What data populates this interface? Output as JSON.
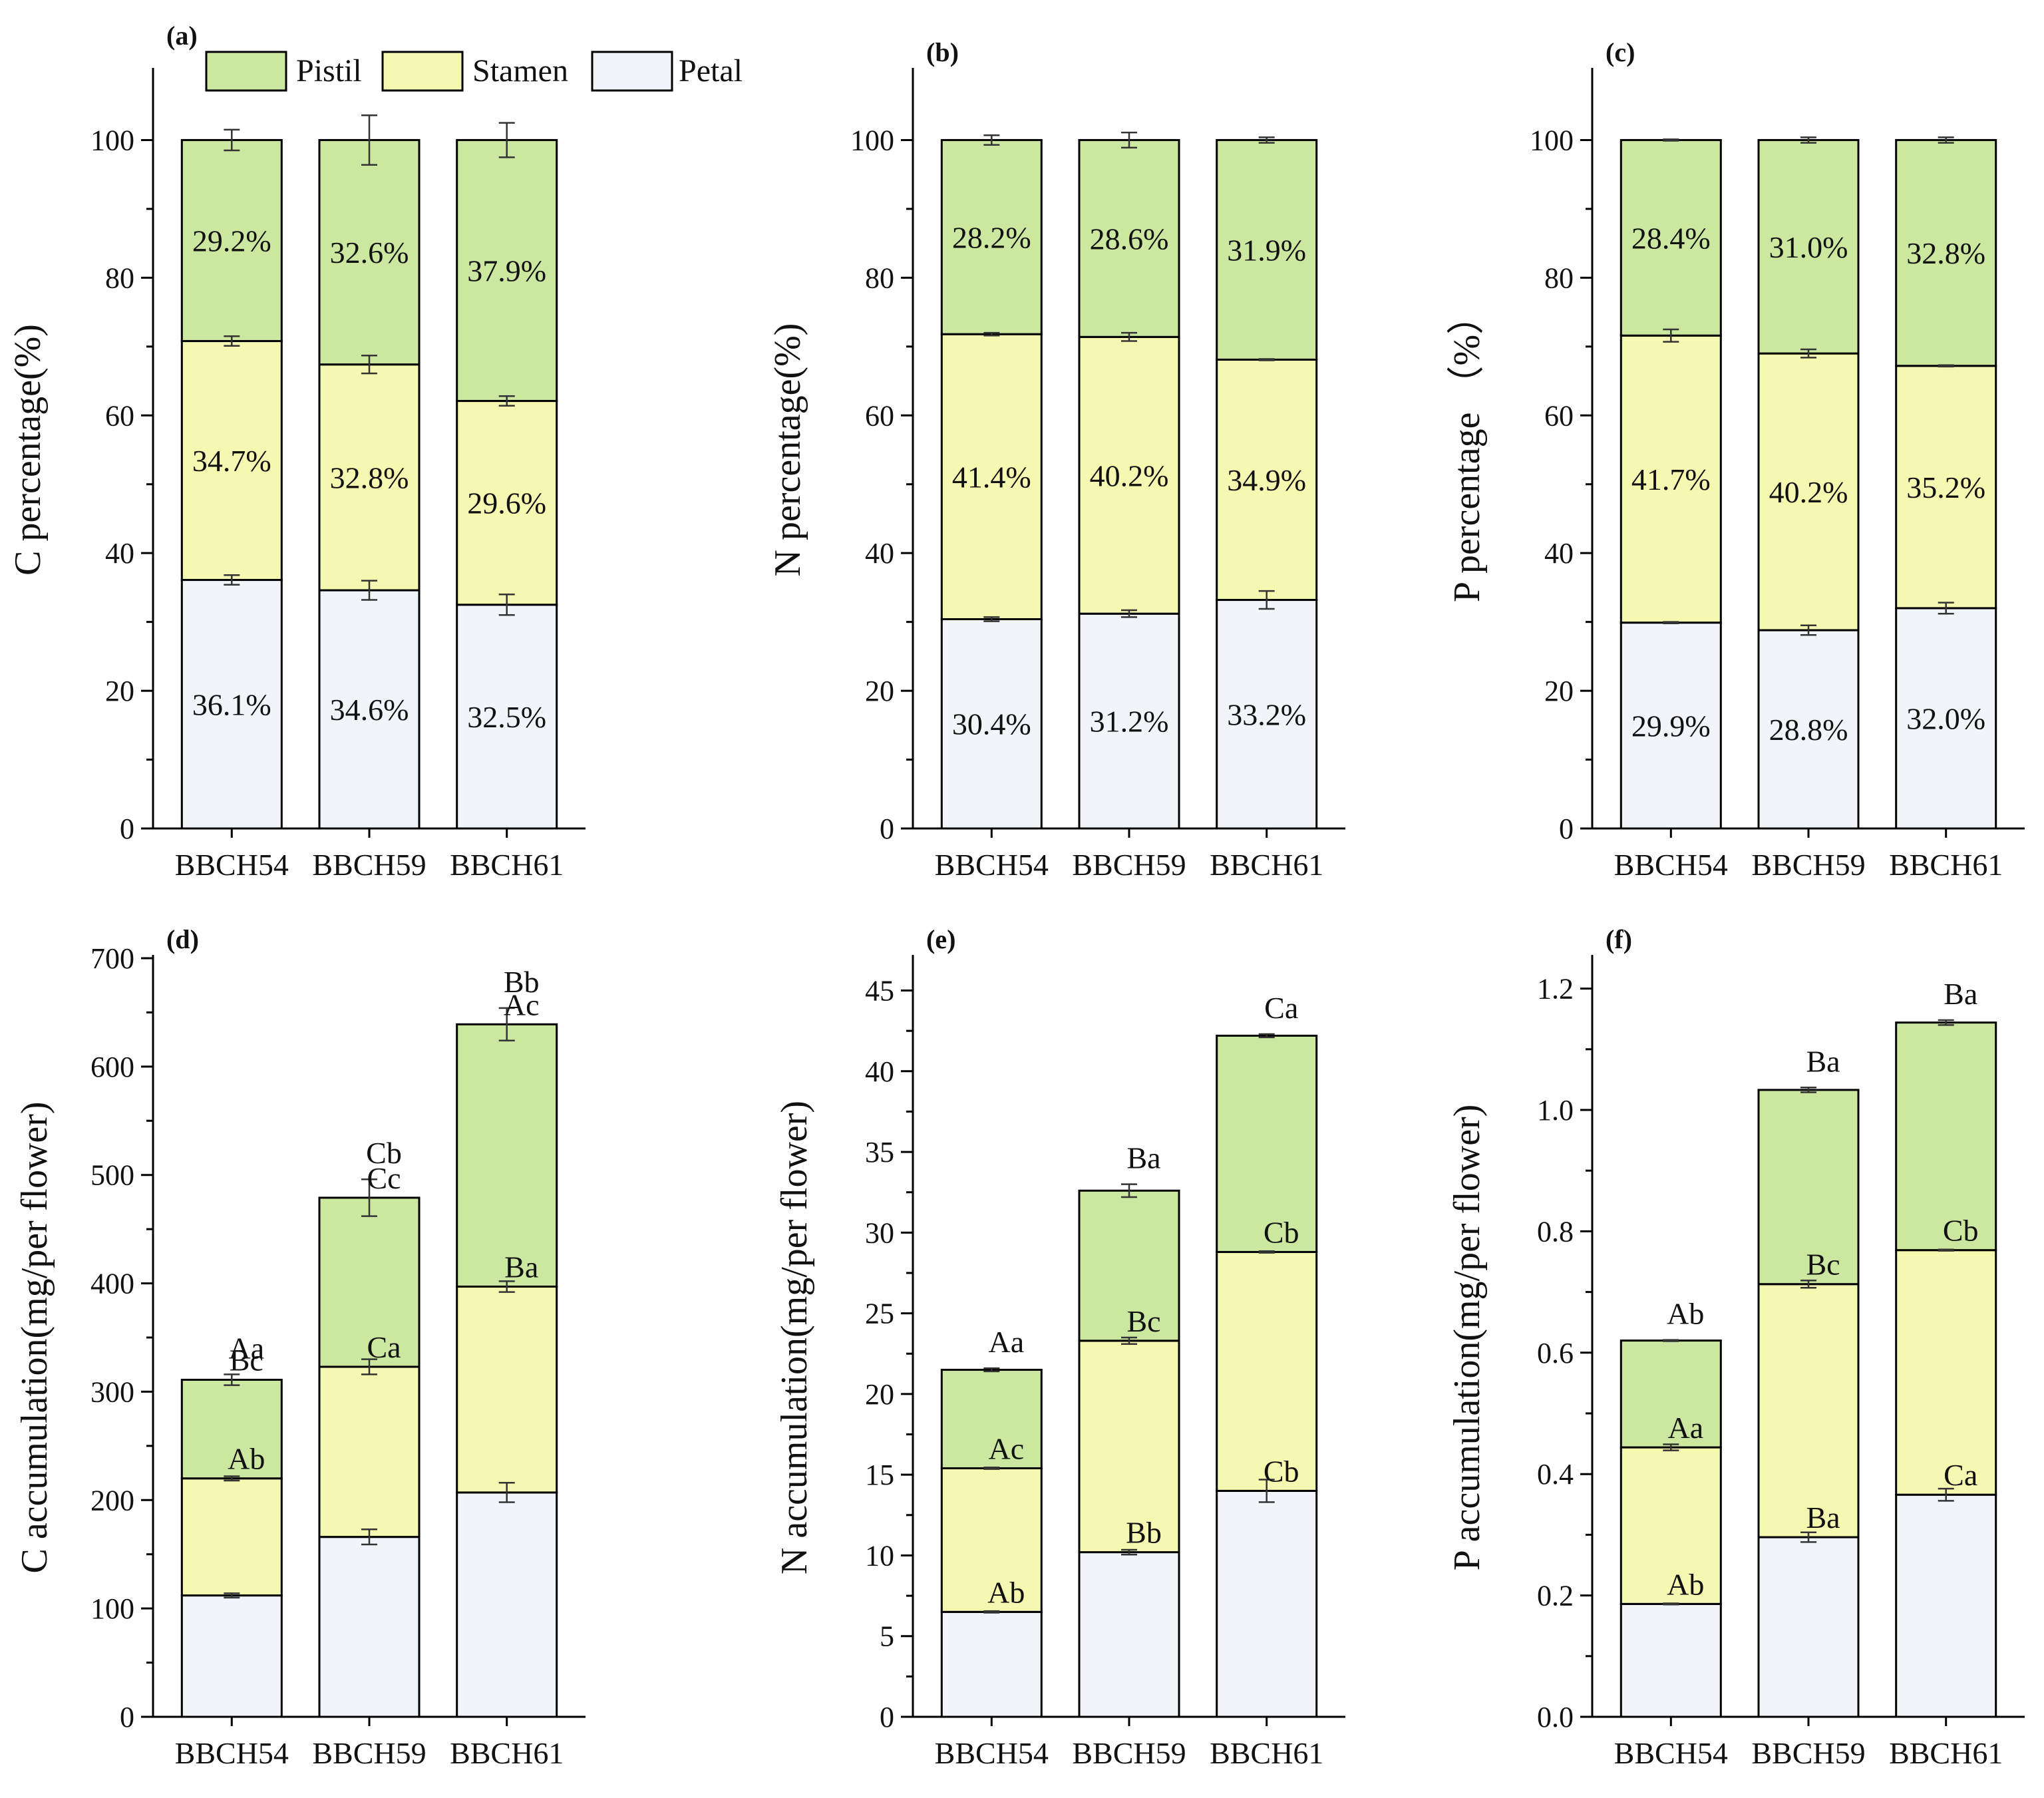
{
  "colors": {
    "pistil": "#cce7a0",
    "stamen": "#f4f8b0",
    "petal": "#f1f4f8"
  },
  "legend": [
    {
      "key": "pistil",
      "label": "Pistil"
    },
    {
      "key": "stamen",
      "label": "Stamen"
    },
    {
      "key": "petal",
      "label": "Petal"
    }
  ],
  "chart_data": [
    {
      "panel": "(a)",
      "type": "bar",
      "stacked": true,
      "categories": [
        "BBCH54",
        "BBCH59",
        "BBCH61"
      ],
      "ylabel": "C percentage(%)",
      "ylim": [
        0,
        110
      ],
      "yticks": [
        0,
        20,
        40,
        60,
        80,
        100
      ],
      "series": [
        {
          "name": "Petal",
          "values": [
            36.1,
            34.6,
            32.5
          ],
          "errors": [
            0.7,
            1.4,
            1.5
          ],
          "labels": [
            "36.1%",
            "34.6%",
            "32.5%"
          ]
        },
        {
          "name": "Stamen",
          "values": [
            34.7,
            32.8,
            29.6
          ],
          "errors": [
            0.7,
            1.3,
            0.7
          ],
          "labels": [
            "34.7%",
            "32.8%",
            "29.6%"
          ]
        },
        {
          "name": "Pistil",
          "values": [
            29.2,
            32.6,
            37.9
          ],
          "errors": [
            1.5,
            3.6,
            2.5
          ],
          "labels": [
            "29.2%",
            "32.6%",
            "37.9%"
          ]
        }
      ]
    },
    {
      "panel": "(b)",
      "type": "bar",
      "stacked": true,
      "categories": [
        "BBCH54",
        "BBCH59",
        "BBCH61"
      ],
      "ylabel": "N percentage(%)",
      "ylim": [
        0,
        110
      ],
      "yticks": [
        0,
        20,
        40,
        60,
        80,
        100
      ],
      "series": [
        {
          "name": "Petal",
          "values": [
            30.4,
            31.2,
            33.2
          ],
          "errors": [
            0.3,
            0.5,
            1.3
          ],
          "labels": [
            "30.4%",
            "31.2%",
            "33.2%"
          ]
        },
        {
          "name": "Stamen",
          "values": [
            41.4,
            40.2,
            34.9
          ],
          "errors": [
            0.2,
            0.6,
            0.1
          ],
          "labels": [
            "41.4%",
            "40.2%",
            "34.9%"
          ]
        },
        {
          "name": "Pistil",
          "values": [
            28.2,
            28.6,
            31.9
          ],
          "errors": [
            0.7,
            1.1,
            0.4
          ],
          "labels": [
            "28.2%",
            "28.6%",
            "31.9%"
          ]
        }
      ]
    },
    {
      "panel": "(c)",
      "type": "bar",
      "stacked": true,
      "categories": [
        "BBCH54",
        "BBCH59",
        "BBCH61"
      ],
      "ylabel": "P percentage （%）",
      "ylim": [
        0,
        110
      ],
      "yticks": [
        0,
        20,
        40,
        60,
        80,
        100
      ],
      "series": [
        {
          "name": "Petal",
          "values": [
            29.9,
            28.8,
            32.0
          ],
          "errors": [
            0.1,
            0.7,
            0.8
          ],
          "labels": [
            "29.9%",
            "28.8%",
            "32.0%"
          ]
        },
        {
          "name": "Stamen",
          "values": [
            41.7,
            40.2,
            35.2
          ],
          "errors": [
            0.9,
            0.6,
            0.1
          ],
          "labels": [
            "41.7%",
            "40.2%",
            "35.2%"
          ]
        },
        {
          "name": "Pistil",
          "values": [
            28.4,
            31.0,
            32.8
          ],
          "errors": [
            0.1,
            0.4,
            0.4
          ],
          "labels": [
            "28.4%",
            "31.0%",
            "32.8%"
          ]
        }
      ]
    },
    {
      "panel": "(d)",
      "type": "bar",
      "stacked": true,
      "categories": [
        "BBCH54",
        "BBCH59",
        "BBCH61"
      ],
      "ylabel": "C accumulation(mg/per flower)",
      "ylim": [
        0,
        700
      ],
      "yticks": [
        0,
        100,
        200,
        300,
        400,
        500,
        600,
        700
      ],
      "series": [
        {
          "name": "Petal",
          "values": [
            112,
            166,
            207
          ],
          "errors": [
            2,
            7,
            9
          ],
          "labels": [
            "",
            "",
            ""
          ]
        },
        {
          "name": "Stamen",
          "values": [
            108,
            157,
            190
          ],
          "errors": [
            2,
            7,
            5
          ],
          "labels": [
            "Ab",
            "Ca",
            "Ba"
          ]
        },
        {
          "name": "Pistil",
          "values": [
            91,
            156,
            242
          ],
          "errors": [
            5,
            17,
            15
          ],
          "labels": [
            "Bc",
            "Cc",
            "Ac"
          ]
        }
      ],
      "totals_labels": [
        "Aa",
        "Cb",
        "Bb"
      ]
    },
    {
      "panel": "(e)",
      "type": "bar",
      "stacked": true,
      "categories": [
        "BBCH54",
        "BBCH59",
        "BBCH61"
      ],
      "ylabel": "N accumulation(mg/per flower)",
      "ylim": [
        0,
        47
      ],
      "yticks": [
        0,
        5,
        10,
        15,
        20,
        25,
        30,
        35,
        40,
        45
      ],
      "series": [
        {
          "name": "Petal",
          "values": [
            6.5,
            10.2,
            14.0
          ],
          "errors": [
            0.05,
            0.15,
            0.7
          ],
          "labels": [
            "Ab",
            "Bb",
            "Cb"
          ]
        },
        {
          "name": "Stamen",
          "values": [
            8.9,
            13.1,
            14.8
          ],
          "errors": [
            0.05,
            0.2,
            0.05
          ],
          "labels": [
            "Ac",
            "Bc",
            "Cb"
          ]
        },
        {
          "name": "Pistil",
          "values": [
            6.1,
            9.3,
            13.4
          ],
          "errors": [
            0.1,
            0.4,
            0.1
          ],
          "labels": [
            "",
            "",
            ""
          ]
        }
      ],
      "totals_labels": [
        "Aa",
        "Ba",
        "Ca"
      ]
    },
    {
      "panel": "(f)",
      "type": "bar",
      "stacked": true,
      "categories": [
        "BBCH54",
        "BBCH59",
        "BBCH61"
      ],
      "ylabel": "P accumulation(mg/per flower)",
      "ylim": [
        0,
        1.25
      ],
      "yticks": [
        "0.0",
        "0.2",
        "0.4",
        "0.6",
        "0.8",
        "1.0",
        "1.2"
      ],
      "series": [
        {
          "name": "Petal",
          "values": [
            0.186,
            0.296,
            0.366
          ],
          "errors": [
            0.001,
            0.008,
            0.01
          ],
          "labels": [
            "Ab",
            "Ba",
            "Ca"
          ]
        },
        {
          "name": "Stamen",
          "values": [
            0.258,
            0.417,
            0.403
          ],
          "errors": [
            0.005,
            0.006,
            0.001
          ],
          "labels": [
            "Aa",
            "Bc",
            "Cb"
          ]
        },
        {
          "name": "Pistil",
          "values": [
            0.176,
            0.32,
            0.375
          ],
          "errors": [
            0.001,
            0.004,
            0.004
          ],
          "labels": [
            "",
            "",
            ""
          ]
        }
      ],
      "totals_labels": [
        "Ab",
        "Ba",
        "Ba"
      ]
    }
  ]
}
